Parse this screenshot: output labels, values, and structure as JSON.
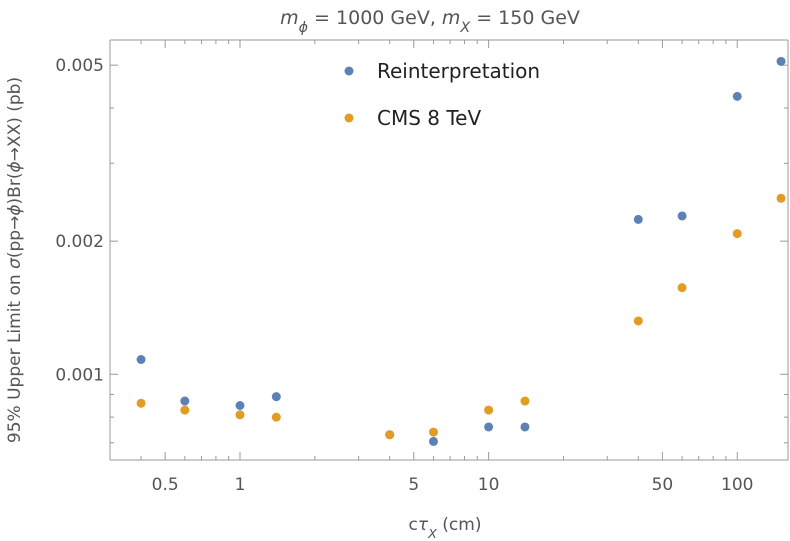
{
  "chart_data": {
    "type": "scatter",
    "title": {
      "parts": [
        {
          "text": "m",
          "style": "italic"
        },
        {
          "text": "ϕ",
          "style": "italic-sub"
        },
        {
          "text": " = 1000 GeV, ",
          "style": "normal"
        },
        {
          "text": "m",
          "style": "italic"
        },
        {
          "text": "X",
          "style": "italic-sub"
        },
        {
          "text": " = 150 GeV",
          "style": "normal"
        }
      ]
    },
    "xlabel": {
      "parts": [
        {
          "text": "c",
          "style": "normal"
        },
        {
          "text": "τ",
          "style": "italic"
        },
        {
          "text": "X",
          "style": "italic-sub"
        },
        {
          "text": " (cm)",
          "style": "normal"
        }
      ]
    },
    "ylabel": {
      "parts": [
        {
          "text": "95% Upper Limit on ",
          "style": "normal"
        },
        {
          "text": "σ",
          "style": "italic"
        },
        {
          "text": "(pp→",
          "style": "normal"
        },
        {
          "text": "ϕ",
          "style": "italic"
        },
        {
          "text": ")Br(",
          "style": "normal"
        },
        {
          "text": "ϕ",
          "style": "italic"
        },
        {
          "text": "→XX) (pb)",
          "style": "normal"
        }
      ]
    },
    "x_scale": "log",
    "y_scale": "log",
    "xlim": [
      0.3,
      160
    ],
    "ylim": [
      0.00064,
      0.0057
    ],
    "x_ticks": [
      {
        "value": 0.5,
        "label": "0.5"
      },
      {
        "value": 1,
        "label": "1"
      },
      {
        "value": 5,
        "label": "5"
      },
      {
        "value": 10,
        "label": "10"
      },
      {
        "value": 50,
        "label": "50"
      },
      {
        "value": 100,
        "label": "100"
      }
    ],
    "y_ticks": [
      {
        "value": 0.001,
        "label": "0.001"
      },
      {
        "value": 0.002,
        "label": "0.002"
      },
      {
        "value": 0.005,
        "label": "0.005"
      }
    ],
    "grid": false,
    "legend_position": "top-center",
    "series": [
      {
        "name": "Reinterpretation",
        "color": "#5e81b5",
        "x": [
          0.4,
          0.6,
          1.0,
          1.4,
          4.0,
          6.0,
          10.0,
          14.0,
          40.0,
          60.0,
          100.0,
          150.0
        ],
        "y": [
          0.00108,
          0.00087,
          0.00085,
          0.00089,
          0.00073,
          0.000705,
          0.00076,
          0.00076,
          0.00224,
          0.00228,
          0.00425,
          0.0051
        ]
      },
      {
        "name": "CMS 8 TeV",
        "color": "#e19c24",
        "x": [
          0.4,
          0.6,
          1.0,
          1.4,
          4.0,
          6.0,
          10.0,
          14.0,
          40.0,
          60.0,
          100.0,
          150.0
        ],
        "y": [
          0.00086,
          0.00083,
          0.00081,
          0.0008,
          0.00073,
          0.00074,
          0.00083,
          0.00087,
          0.00132,
          0.00157,
          0.00208,
          0.0025
        ]
      }
    ]
  }
}
